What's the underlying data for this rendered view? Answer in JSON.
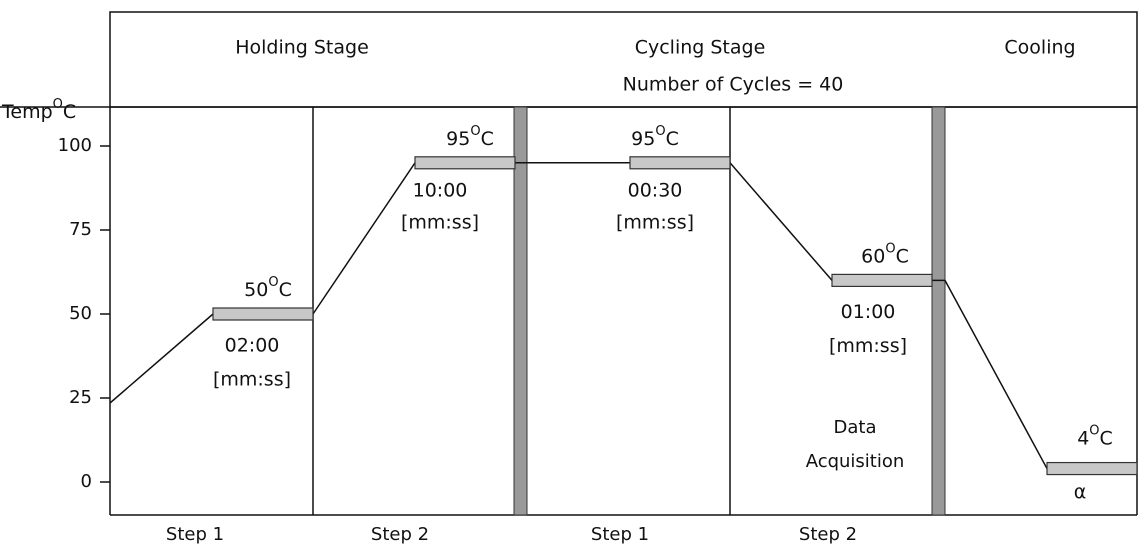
{
  "axis": {
    "label": "Temp",
    "degree": "O",
    "unit": "C",
    "ticks": [
      0,
      25,
      50,
      75,
      100
    ]
  },
  "stages": [
    {
      "name": "Holding Stage"
    },
    {
      "name": "Cycling Stage",
      "note": "Number of Cycles = 40"
    },
    {
      "name": "Cooling"
    }
  ],
  "steps": [
    "Step 1",
    "Step 2",
    "Step 1",
    "Step 2"
  ],
  "holds": [
    {
      "temp": 50,
      "time": "02:00",
      "format": "[mm:ss]"
    },
    {
      "temp": 95,
      "time": "10:00",
      "format": "[mm:ss]"
    },
    {
      "temp": 95,
      "time": "00:30",
      "format": "[mm:ss]"
    },
    {
      "temp": 60,
      "time": "01:00",
      "format": "[mm:ss]"
    },
    {
      "temp": 4,
      "time": "α"
    }
  ],
  "data_acquisition": [
    "Data",
    "Acquisition"
  ]
}
